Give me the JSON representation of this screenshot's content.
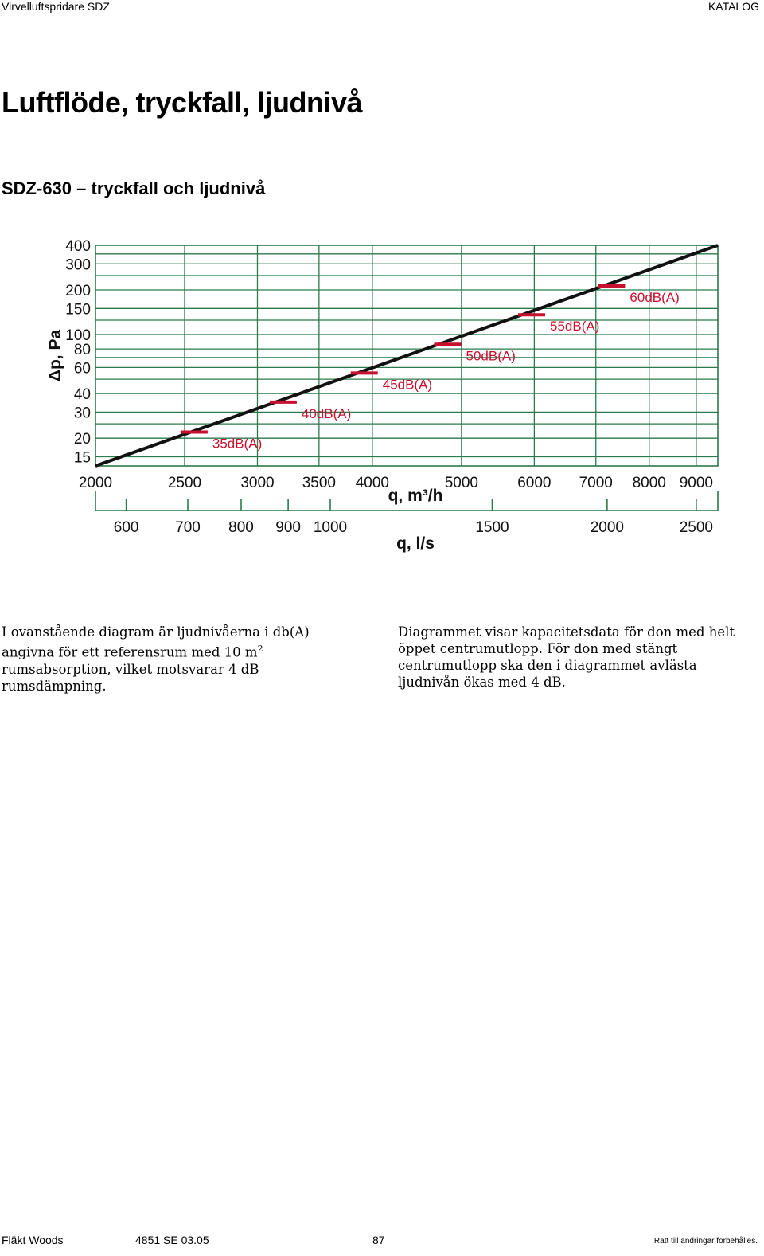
{
  "header": {
    "left": "Virvelluftspridare SDZ",
    "right": "KATALOG"
  },
  "title": "Luftflöde, tryckfall, ljudnivå",
  "subtitle": "SDZ-630 – tryckfall och ljudnivå",
  "chart_data": {
    "type": "line",
    "x_scale": "log",
    "y_scale": "log",
    "xlim": [
      2000,
      9500
    ],
    "ylim": [
      13,
      400
    ],
    "ylabel": "Δp, Pa",
    "xlabel": "q, m³/h",
    "xlabel_secondary": "q, l/s",
    "grid": true,
    "x_ticks": [
      2000,
      2500,
      3000,
      3500,
      4000,
      5000,
      6000,
      7000,
      8000,
      9000
    ],
    "y_ticks": [
      15,
      20,
      30,
      40,
      60,
      80,
      100,
      150,
      200,
      300,
      400
    ],
    "secondary_ticks": [
      600,
      700,
      800,
      900,
      1000,
      1500,
      2000,
      2500
    ],
    "series": [
      {
        "x": [
          2000,
          9500
        ],
        "y": [
          13,
          400
        ]
      }
    ],
    "sound_levels": [
      {
        "label": "35dB(A)",
        "x": 2560,
        "y": 22
      },
      {
        "label": "40dB(A)",
        "x": 3200,
        "y": 35
      },
      {
        "label": "45dB(A)",
        "x": 3920,
        "y": 55
      },
      {
        "label": "50dB(A)",
        "x": 4830,
        "y": 86
      },
      {
        "label": "55dB(A)",
        "x": 5960,
        "y": 136
      },
      {
        "label": "60dB(A)",
        "x": 7280,
        "y": 213
      }
    ],
    "colors": {
      "grid": "#2b7a4b",
      "line": "#111111",
      "marker": "#c8102e"
    }
  },
  "paragraphs": {
    "p1_a": "I ovanstående diagram är ljudnivåerna i db(A) angivna för ett referensrum med 10 m",
    "p1_sup": "2",
    "p1_b": " rumsabsorption, vilket motsvarar 4 dB rumsdämpning.",
    "p2": "Diagrammet visar kapacitetsdata för don med helt öppet centrumutlopp. För don med stängt centrumutlopp ska den i diagrammet avlästa ljudnivån ökas med 4 dB."
  },
  "footer": {
    "company": "Fläkt Woods",
    "doc": "4851 SE  03.05",
    "page": "87",
    "note": "Rätt till ändringar förbehålles."
  }
}
